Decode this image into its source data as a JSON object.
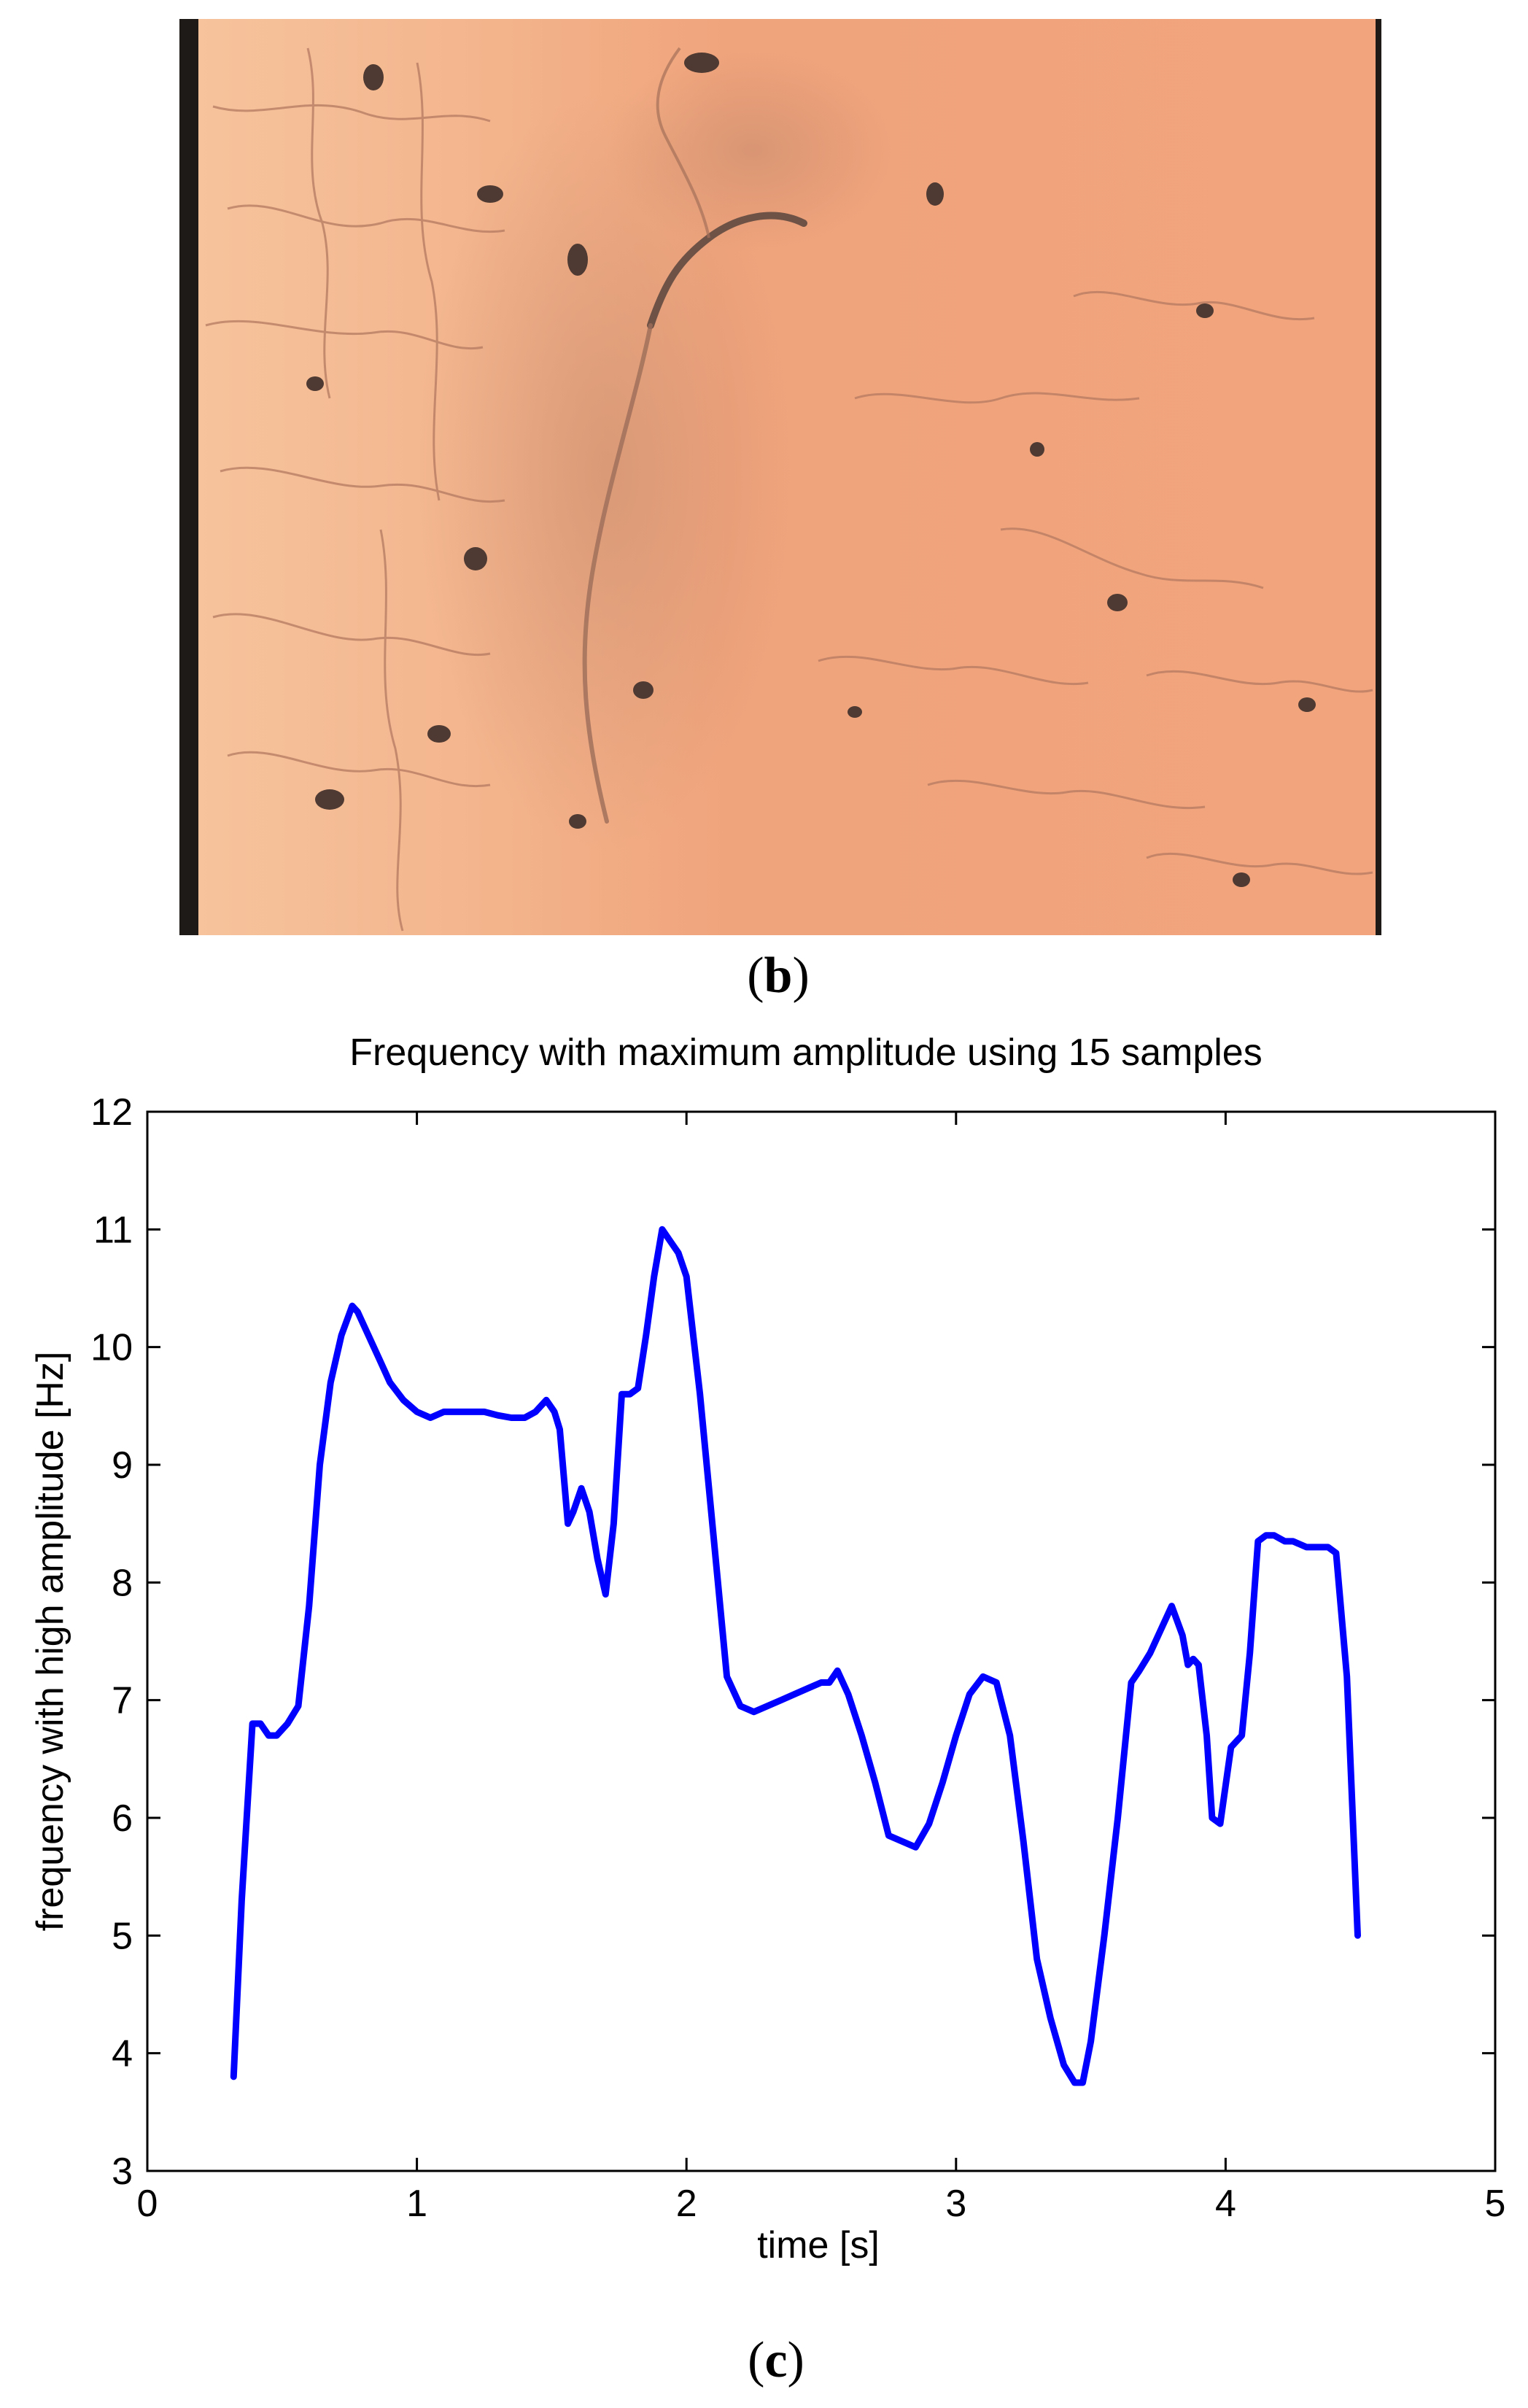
{
  "panels": {
    "b_label_paren_open": "(",
    "b_label_letter": "b",
    "b_label_paren_close": ")",
    "c_label_paren_open": "(",
    "c_label_letter": "c",
    "c_label_paren_close": ")"
  },
  "photo": {
    "background_color": "#f2a57d",
    "border_color": "#1e1a17"
  },
  "chart_data": {
    "type": "line",
    "title": "Frequency with maximum amplitude using 15 samples",
    "xlabel": "time [s]",
    "ylabel": "frequency with high amplitude [Hz]",
    "xlim": [
      0,
      5
    ],
    "ylim": [
      3,
      12
    ],
    "xticks": [
      0,
      1,
      2,
      3,
      4,
      5
    ],
    "yticks": [
      3,
      4,
      5,
      6,
      7,
      8,
      9,
      10,
      11,
      12
    ],
    "grid": false,
    "line_color": "#0000ff",
    "series": [
      {
        "x": [
          0.32,
          0.35,
          0.39,
          0.42,
          0.45,
          0.48,
          0.52,
          0.56,
          0.6,
          0.64,
          0.68,
          0.72,
          0.76,
          0.78,
          0.82,
          0.86,
          0.9,
          0.95,
          1.0,
          1.05,
          1.1,
          1.15,
          1.2,
          1.25,
          1.3,
          1.35,
          1.4,
          1.44,
          1.48,
          1.51,
          1.53,
          1.56,
          1.58,
          1.61,
          1.64,
          1.67,
          1.7,
          1.73,
          1.76,
          1.79,
          1.82,
          1.85,
          1.88,
          1.91,
          1.94,
          1.97,
          2.0,
          2.05,
          2.1,
          2.15,
          2.2,
          2.25,
          2.3,
          2.35,
          2.4,
          2.45,
          2.5,
          2.53,
          2.56,
          2.6,
          2.65,
          2.7,
          2.75,
          2.8,
          2.85,
          2.9,
          2.95,
          3.0,
          3.05,
          3.1,
          3.15,
          3.2,
          3.25,
          3.3,
          3.35,
          3.4,
          3.44,
          3.47,
          3.5,
          3.55,
          3.6,
          3.65,
          3.68,
          3.72,
          3.76,
          3.8,
          3.84,
          3.86,
          3.88,
          3.9,
          3.93,
          3.95,
          3.98,
          4.02,
          4.06,
          4.09,
          4.12,
          4.15,
          4.18,
          4.22,
          4.25,
          4.3,
          4.35,
          4.38,
          4.41,
          4.45,
          4.49
        ],
        "y": [
          3.8,
          5.3,
          6.8,
          6.8,
          6.7,
          6.7,
          6.8,
          6.95,
          7.8,
          9.0,
          9.7,
          10.1,
          10.35,
          10.3,
          10.1,
          9.9,
          9.7,
          9.55,
          9.45,
          9.4,
          9.45,
          9.45,
          9.45,
          9.45,
          9.42,
          9.4,
          9.4,
          9.45,
          9.55,
          9.45,
          9.3,
          8.5,
          8.6,
          8.8,
          8.6,
          8.2,
          7.9,
          8.5,
          9.6,
          9.6,
          9.65,
          10.1,
          10.6,
          11.0,
          10.9,
          10.8,
          10.6,
          9.6,
          8.4,
          7.2,
          6.95,
          6.9,
          6.95,
          7.0,
          7.05,
          7.1,
          7.15,
          7.15,
          7.25,
          7.05,
          6.7,
          6.3,
          5.85,
          5.8,
          5.75,
          5.95,
          6.3,
          6.7,
          7.05,
          7.2,
          7.15,
          6.7,
          5.8,
          4.8,
          4.3,
          3.9,
          3.75,
          3.75,
          4.1,
          5.0,
          6.0,
          7.15,
          7.25,
          7.4,
          7.6,
          7.8,
          7.55,
          7.3,
          7.35,
          7.3,
          6.7,
          6.0,
          5.95,
          6.6,
          6.7,
          7.4,
          8.35,
          8.4,
          8.4,
          8.35,
          8.35,
          8.3,
          8.3,
          8.3,
          8.25,
          7.2,
          5.0
        ]
      }
    ]
  }
}
